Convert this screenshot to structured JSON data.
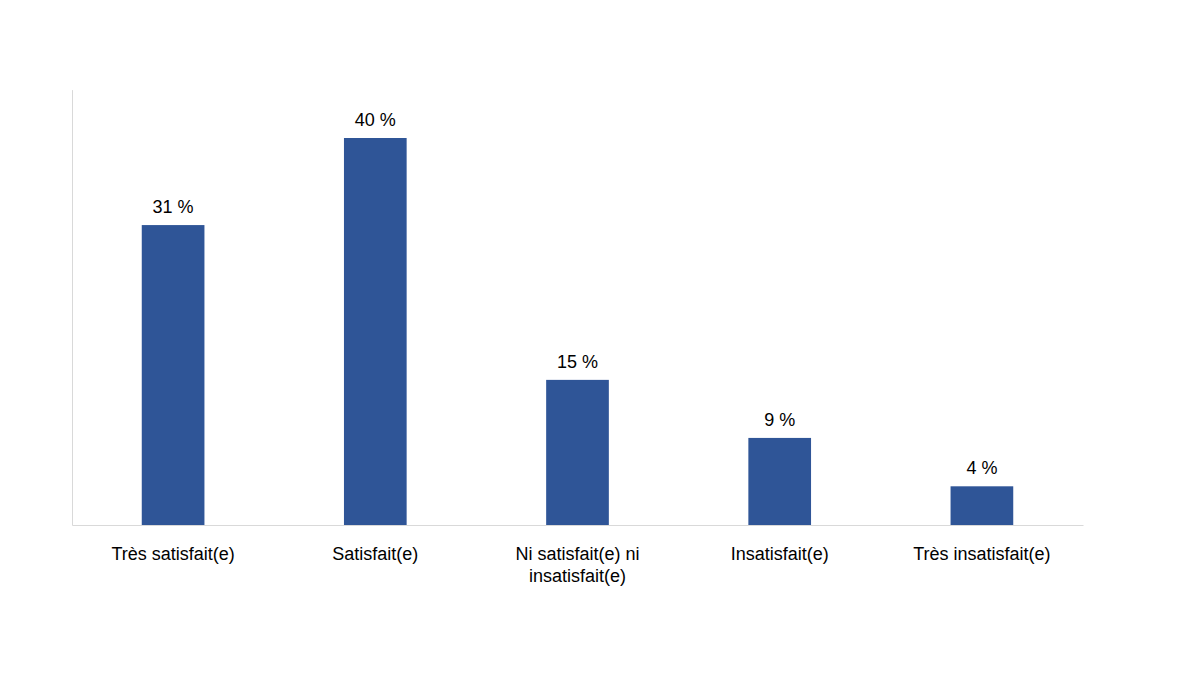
{
  "chart_data": {
    "type": "bar",
    "categories": [
      "Très satisfait(e)",
      "Satisfait(e)",
      "Ni satisfait(e) ni insatisfait(e)",
      "Insatisfait(e)",
      "Très insatisfait(e)"
    ],
    "values": [
      31,
      40,
      15,
      9,
      4
    ],
    "value_labels": [
      "31 %",
      "40 %",
      "15 %",
      "9 %",
      "4 %"
    ],
    "color": "#2f5597",
    "ylim": [
      0,
      45
    ],
    "yticks": [],
    "grid": false,
    "data_labels": true,
    "tick_labels": "x"
  }
}
